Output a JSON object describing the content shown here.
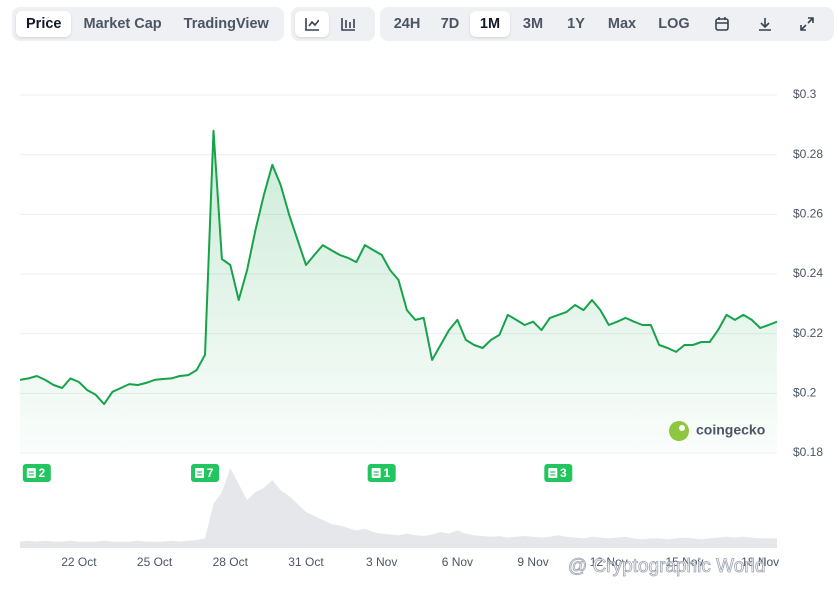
{
  "toolbar": {
    "views": [
      "Price",
      "Market Cap",
      "TradingView"
    ],
    "ranges": [
      "24H",
      "7D",
      "1M",
      "3M",
      "1Y",
      "Max",
      "LOG"
    ]
  },
  "chart_data": {
    "type": "line",
    "categories": [
      null,
      null,
      null,
      null,
      null,
      null,
      null,
      "22 Oct",
      null,
      null,
      null,
      null,
      null,
      null,
      null,
      null,
      "25 Oct",
      null,
      null,
      null,
      null,
      null,
      null,
      null,
      null,
      "28 Oct",
      null,
      null,
      null,
      null,
      null,
      null,
      null,
      null,
      "31 Oct",
      null,
      null,
      null,
      null,
      null,
      null,
      null,
      null,
      "3 Nov",
      null,
      null,
      null,
      null,
      null,
      null,
      null,
      null,
      "6 Nov",
      null,
      null,
      null,
      null,
      null,
      null,
      null,
      null,
      "9 Nov",
      null,
      null,
      null,
      null,
      null,
      null,
      null,
      null,
      "12 Nov",
      null,
      null,
      null,
      null,
      null,
      null,
      null,
      null,
      "15 Nov",
      null,
      null,
      null,
      null,
      null,
      null,
      null,
      null,
      "18 Nov",
      null,
      null
    ],
    "series": [
      {
        "color": "#16a34a",
        "values": [
          0.2045,
          0.205,
          0.2058,
          0.2045,
          0.2028,
          0.2018,
          0.205,
          0.2038,
          0.2011,
          0.1995,
          0.1964,
          0.2005,
          0.2018,
          0.2031,
          0.2028,
          0.2035,
          0.2045,
          0.2048,
          0.205,
          0.2058,
          0.2061,
          0.2078,
          0.2129,
          0.288,
          0.245,
          0.243,
          0.2313,
          0.2413,
          0.2548,
          0.2665,
          0.2766,
          0.2698,
          0.2598,
          0.2514,
          0.243,
          0.2464,
          0.2497,
          0.248,
          0.2464,
          0.2454,
          0.244,
          0.2497,
          0.248,
          0.2464,
          0.2413,
          0.238,
          0.2279,
          0.2246,
          0.2253,
          0.2112,
          0.2162,
          0.2212,
          0.2246,
          0.2179,
          0.2162,
          0.2152,
          0.2179,
          0.2196,
          0.2263,
          0.2246,
          0.2229,
          0.224,
          0.2212,
          0.2253,
          0.2263,
          0.2273,
          0.2296,
          0.2279,
          0.2313,
          0.2279,
          0.2229,
          0.224,
          0.2253,
          0.224,
          0.2229,
          0.2229,
          0.2162,
          0.2152,
          0.2139,
          0.2162,
          0.2162,
          0.2172,
          0.2172,
          0.2212,
          0.2263,
          0.2246,
          0.2263,
          0.2246,
          0.2219,
          0.2229,
          0.224
        ]
      }
    ],
    "volume": {
      "color": "#e5e7eb",
      "values": [
        8,
        9,
        8,
        9,
        8,
        8,
        9,
        8,
        8,
        8,
        9,
        8,
        8,
        8,
        9,
        8,
        8,
        8,
        9,
        8,
        9,
        10,
        12,
        55,
        70,
        100,
        80,
        60,
        70,
        75,
        85,
        72,
        65,
        55,
        45,
        40,
        35,
        30,
        28,
        25,
        22,
        24,
        20,
        18,
        17,
        16,
        18,
        16,
        15,
        17,
        20,
        18,
        22,
        18,
        16,
        15,
        14,
        15,
        13,
        14,
        15,
        14,
        13,
        14,
        16,
        14,
        13,
        12,
        14,
        13,
        12,
        13,
        14,
        12,
        11,
        12,
        12,
        11,
        12,
        13,
        12,
        11,
        12,
        13,
        14,
        13,
        14,
        13,
        12,
        12,
        12
      ]
    },
    "events": [
      null,
      null,
      2,
      null,
      null,
      null,
      null,
      null,
      null,
      null,
      null,
      null,
      null,
      null,
      null,
      null,
      null,
      null,
      null,
      null,
      null,
      null,
      7,
      null,
      null,
      null,
      null,
      null,
      null,
      null,
      null,
      null,
      null,
      null,
      null,
      null,
      null,
      null,
      null,
      null,
      null,
      null,
      null,
      1,
      null,
      null,
      null,
      null,
      null,
      null,
      null,
      null,
      null,
      null,
      null,
      null,
      null,
      null,
      null,
      null,
      null,
      null,
      null,
      null,
      3,
      null,
      null,
      null,
      null,
      null,
      null,
      null,
      null,
      null,
      null,
      null,
      null,
      null,
      null,
      null,
      null,
      null,
      null,
      null,
      null,
      null,
      null,
      null,
      null,
      null,
      null
    ],
    "ylim": [
      0.18,
      0.3
    ],
    "yticks": [
      {
        "value": 0.18,
        "label": "$0.18"
      },
      {
        "value": 0.2,
        "label": "$0.2"
      },
      {
        "value": 0.22,
        "label": "$0.22"
      },
      {
        "value": 0.24,
        "label": "$0.24"
      },
      {
        "value": 0.26,
        "label": "$0.26"
      },
      {
        "value": 0.28,
        "label": "$0.28"
      },
      {
        "value": 0.3,
        "label": "$0.3"
      }
    ],
    "grid": true,
    "logo": "coingecko",
    "watermark": "@ Cryptographic World"
  }
}
